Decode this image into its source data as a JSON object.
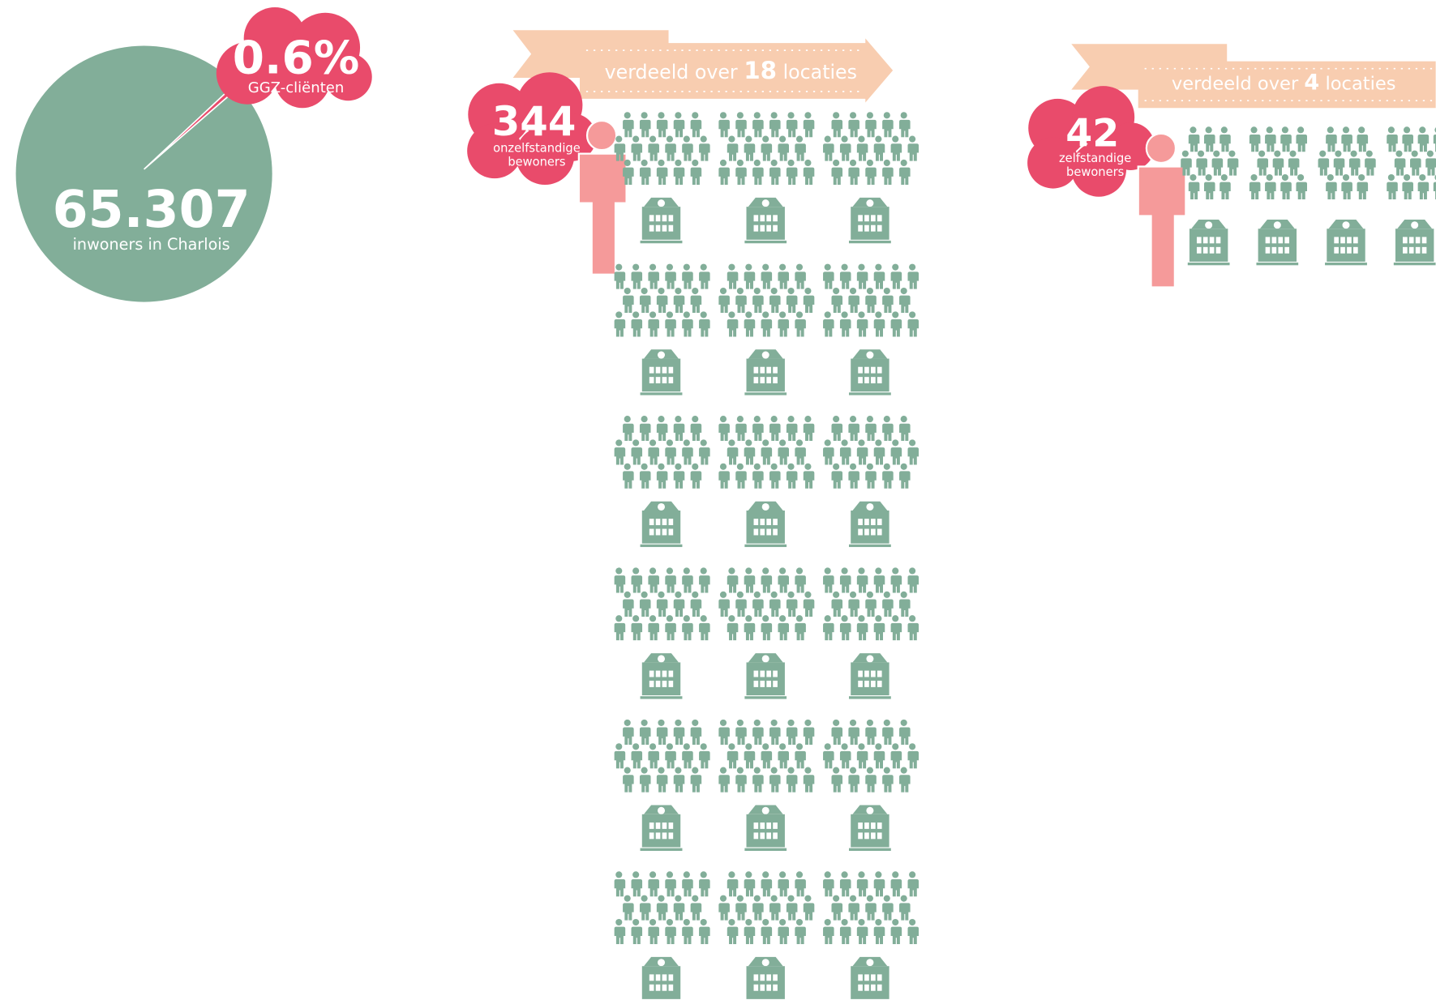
{
  "population": {
    "value": {
      "value": 65307,
      "label": "65.307"
    },
    "caption": "inwoners in Charlois"
  },
  "share": {
    "value": {
      "value": 0.6,
      "label": "0.6%"
    },
    "caption": "GGZ-cliënten"
  },
  "groups": [
    {
      "count": 344,
      "caption_lines": [
        "onzelfstandige",
        "bewoners"
      ],
      "banner_prefix": "verdeeld over",
      "locations": 18,
      "banner_suffix": "locaties"
    },
    {
      "count": 42,
      "caption_lines": [
        "zelfstandige",
        "bewoners"
      ],
      "banner_prefix": "verdeeld over",
      "locations": 4,
      "banner_suffix": "locaties"
    }
  ]
}
